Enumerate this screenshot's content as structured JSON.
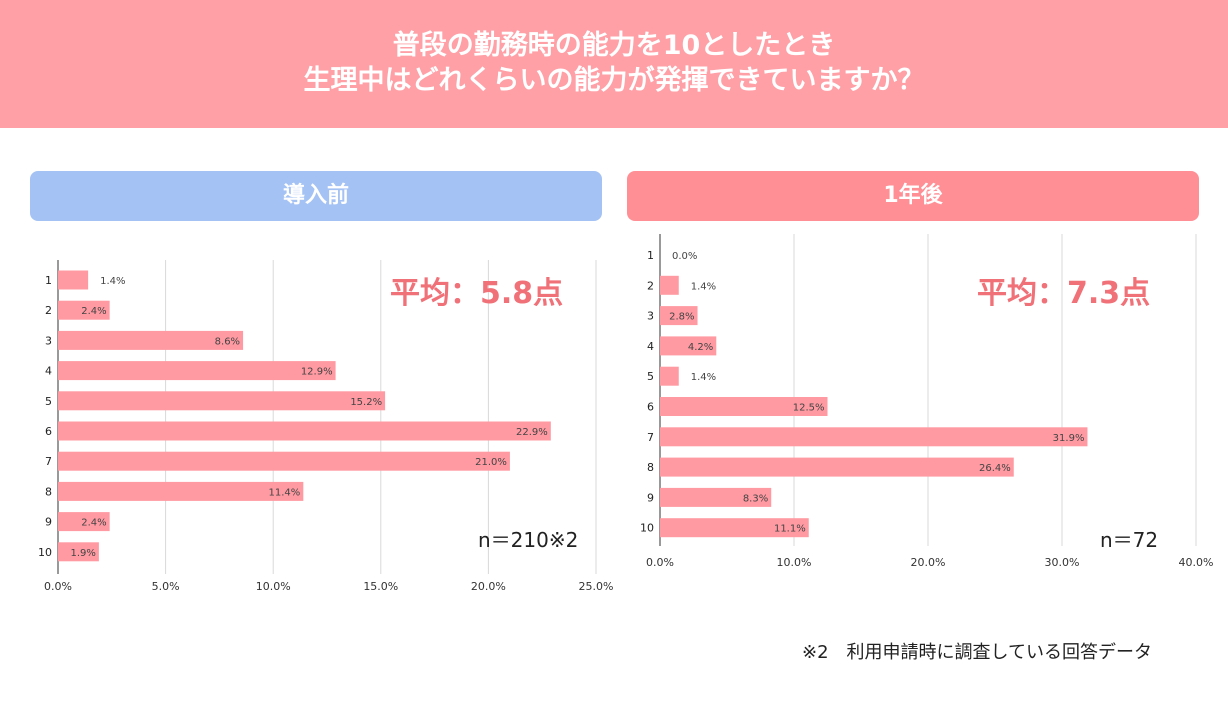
{
  "header": {
    "line1": "普段の勤務時の能力を10としたとき",
    "line2": "生理中はどれくらいの能力が発揮できていますか？"
  },
  "colors": {
    "bar": "#ff9aa2",
    "grid": "#d9d9d9",
    "axis": "#333333"
  },
  "chart_data": [
    {
      "type": "bar",
      "orientation": "horizontal",
      "title": "導入前",
      "average_label": "平均：5.8点",
      "n_label": "n＝210※2",
      "categories": [
        "1",
        "2",
        "3",
        "4",
        "5",
        "6",
        "7",
        "8",
        "9",
        "10"
      ],
      "values": [
        1.4,
        2.4,
        8.6,
        12.9,
        15.2,
        22.9,
        21.0,
        11.4,
        2.4,
        1.9
      ],
      "data_labels": [
        "1.4%",
        "2.4%",
        "8.6%",
        "12.9%",
        "15.2%",
        "22.9%",
        "21.0%",
        "11.4%",
        "2.4%",
        "1.9%"
      ],
      "xlim": [
        0,
        25
      ],
      "xticks": [
        "0.0%",
        "5.0%",
        "10.0%",
        "15.0%",
        "20.0%",
        "25.0%"
      ],
      "grid": true
    },
    {
      "type": "bar",
      "orientation": "horizontal",
      "title": "1年後",
      "average_label": "平均：7.3点",
      "n_label": "n＝72",
      "categories": [
        "1",
        "2",
        "3",
        "4",
        "5",
        "6",
        "7",
        "8",
        "9",
        "10"
      ],
      "values": [
        0.0,
        1.4,
        2.8,
        4.2,
        1.4,
        12.5,
        31.9,
        26.4,
        8.3,
        11.1
      ],
      "data_labels": [
        "0.0%",
        "1.4%",
        "2.8%",
        "4.2%",
        "1.4%",
        "12.5%",
        "31.9%",
        "26.4%",
        "8.3%",
        "11.1%"
      ],
      "xlim": [
        0,
        40
      ],
      "xticks": [
        "0.0%",
        "10.0%",
        "20.0%",
        "30.0%",
        "40.0%"
      ],
      "grid": true
    }
  ],
  "footnote": "※2　利用申請時に調査している回答データ"
}
